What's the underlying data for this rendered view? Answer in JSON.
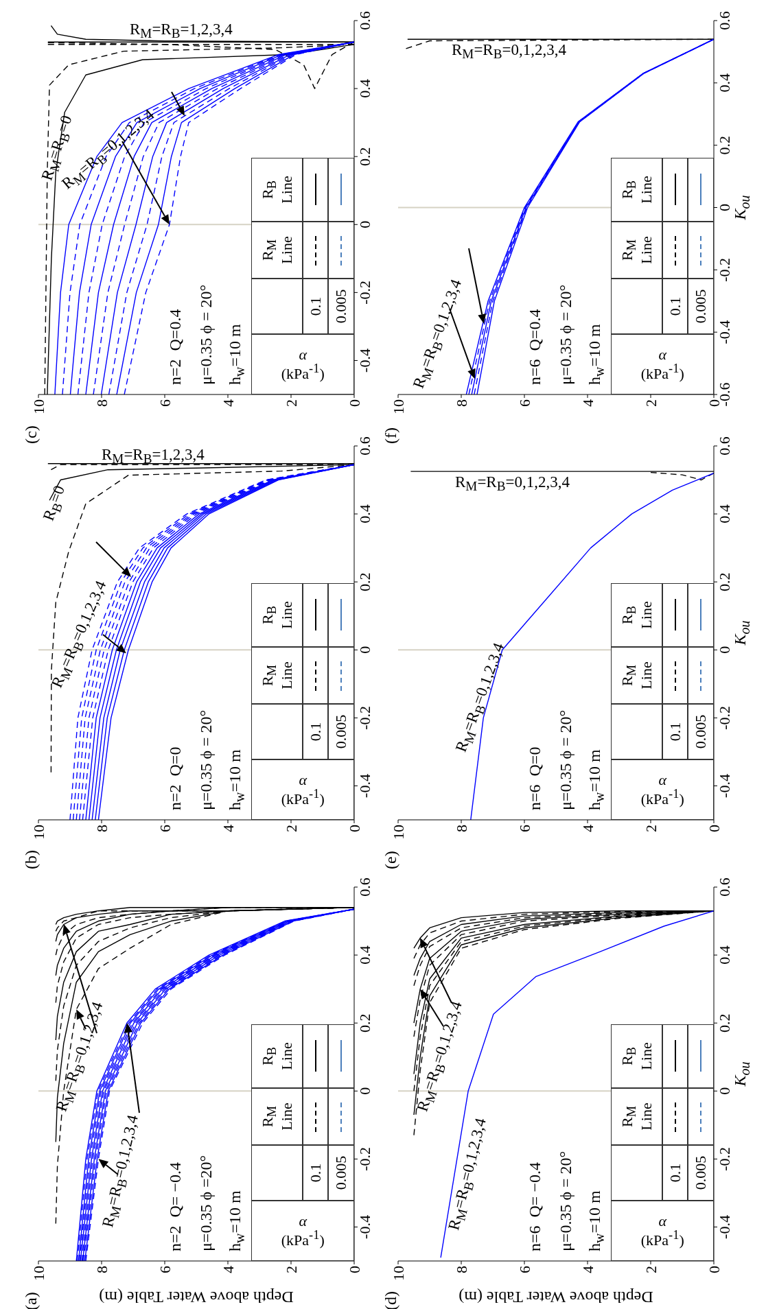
{
  "chart_data": [
    {
      "type": "line",
      "title": "(c)",
      "ylabel": null,
      "xlim": [
        10,
        0
      ],
      "xticks": [
        10,
        8,
        6,
        4,
        2,
        0
      ],
      "ylim": [
        -0.5,
        0.6
      ],
      "yticks": [
        -0.4,
        -0.2,
        0,
        0.2,
        0.4,
        0.6
      ],
      "ref_lines": [
        {
          "axis": "y",
          "value": 0,
          "color": "#d6d2c4"
        }
      ],
      "annotations": [
        "n=2  Q=0.4",
        "μ=0.35 ϕ = 20°",
        "h$_{w}$=10 m",
        "α (kPa$^{-1}$)",
        "R$_{M}$ Line",
        "R$_{B}$ Line",
        "0.1",
        "0.005",
        "R$_{M}$=R$_{B}$=1,2,3,4",
        "R$_{M}$=R$_{B}$=0",
        {
          "text": "R$_{M}$=R$_{B}$=0,1,2,3,4",
          "x": 5.85,
          "y": 0
        }
      ],
      "series": [
        {
          "color": "#000000",
          "line_style": "solid",
          "values": [
            0.53,
            0.515,
            0.5,
            0.485,
            0.44,
            0.33,
            0.155,
            -0.1,
            -0.5
          ],
          "x": [
            0,
            1,
            2.1,
            6.7,
            8.5,
            9.17,
            9.45,
            9.59,
            9.72
          ]
        },
        {
          "color": "#000000",
          "line_style": "dashed",
          "values": [
            0.53,
            0.52,
            0.51,
            0.47,
            0.41,
            0.155,
            -0.5
          ],
          "x": [
            0,
            2.3,
            7.3,
            9.04,
            9.65,
            9.72,
            9.8
          ]
        },
        {
          "color": "#000000",
          "line_style": "solid",
          "values": [
            0.537,
            0.537
          ],
          "x": [
            0,
            9.7
          ]
        },
        {
          "color": "#000000",
          "line_style": "solid",
          "values": [
            0.537,
            0.54,
            0.545,
            0.56,
            0.585
          ],
          "x": [
            0,
            6,
            8.5,
            9.4,
            9.6
          ]
        },
        {
          "color": "#000000",
          "line_style": "dashed",
          "values": [
            0.537,
            0.5,
            0.4,
            0.47,
            0.515,
            0.53,
            0.535
          ],
          "x": [
            0,
            0.7,
            1.25,
            1.6,
            2.5,
            6,
            9.7
          ]
        },
        {
          "color": "#000000",
          "line_style": "dashed",
          "values": [
            0.53,
            0.53
          ],
          "x": [
            0,
            9.7
          ]
        },
        {
          "color": "#0000ff",
          "line_style": "solid",
          "x": [
            9.48,
            9.3,
            9.04,
            8.15,
            7.35,
            5.24,
            2.4,
            0
          ],
          "values": [
            -0.5,
            -0.2,
            0,
            0.2,
            0.3,
            0.4,
            0.5,
            0.537
          ]
        },
        {
          "color": "#0000ff",
          "line_style": "dashed",
          "x": [
            9.24,
            9.0,
            8.69,
            7.86,
            7.12,
            5.06,
            2.34,
            0
          ],
          "values": [
            -0.5,
            -0.2,
            0,
            0.2,
            0.3,
            0.4,
            0.5,
            0.537
          ]
        },
        {
          "color": "#0000ff",
          "line_style": "solid",
          "x": [
            8.99,
            8.7,
            8.33,
            7.56,
            6.88,
            4.88,
            2.28,
            0
          ],
          "values": [
            -0.5,
            -0.2,
            0,
            0.2,
            0.3,
            0.4,
            0.5,
            0.537
          ]
        },
        {
          "color": "#0000ff",
          "line_style": "dashed",
          "x": [
            8.75,
            8.4,
            7.98,
            7.27,
            6.65,
            4.69,
            2.22,
            0
          ],
          "values": [
            -0.5,
            -0.2,
            0,
            0.2,
            0.3,
            0.4,
            0.5,
            0.537
          ]
        },
        {
          "color": "#0000ff",
          "line_style": "solid",
          "x": [
            8.5,
            8.1,
            7.62,
            6.97,
            6.41,
            4.51,
            2.16,
            0
          ],
          "values": [
            -0.5,
            -0.2,
            0,
            0.2,
            0.3,
            0.4,
            0.5,
            0.537
          ]
        },
        {
          "color": "#0000ff",
          "line_style": "dashed",
          "x": [
            8.26,
            7.8,
            7.27,
            6.68,
            6.18,
            4.33,
            2.09,
            0
          ],
          "values": [
            -0.5,
            -0.2,
            0,
            0.2,
            0.3,
            0.4,
            0.5,
            0.537
          ]
        },
        {
          "color": "#0000ff",
          "line_style": "solid",
          "x": [
            8.01,
            7.5,
            6.91,
            6.38,
            5.94,
            4.15,
            2.03,
            0
          ],
          "values": [
            -0.5,
            -0.2,
            0,
            0.2,
            0.3,
            0.4,
            0.5,
            0.537
          ]
        },
        {
          "color": "#0000ff",
          "line_style": "dashed",
          "x": [
            7.77,
            7.2,
            6.56,
            6.09,
            5.71,
            3.96,
            1.97,
            0
          ],
          "values": [
            -0.5,
            -0.2,
            0,
            0.2,
            0.3,
            0.4,
            0.5,
            0.537
          ]
        },
        {
          "color": "#0000ff",
          "line_style": "solid",
          "x": [
            7.52,
            6.9,
            6.2,
            5.79,
            5.47,
            3.78,
            1.91,
            0
          ],
          "values": [
            -0.5,
            -0.2,
            0,
            0.2,
            0.3,
            0.4,
            0.5,
            0.537
          ]
        },
        {
          "color": "#0000ff",
          "line_style": "dashed",
          "x": [
            7.28,
            6.6,
            5.85,
            5.5,
            5.24,
            3.6,
            1.85,
            0
          ],
          "values": [
            -0.5,
            -0.2,
            0,
            0.2,
            0.3,
            0.4,
            0.5,
            0.537
          ]
        }
      ]
    },
    {
      "type": "line",
      "title": "(f)",
      "ylabel": "K$_{ou}$",
      "xlim": [
        10,
        0
      ],
      "xticks": [
        10,
        8,
        6,
        4,
        2,
        0
      ],
      "ylim": [
        -0.6,
        0.6
      ],
      "yticks": [
        -0.6,
        -0.4,
        -0.2,
        0,
        0.2,
        0.4,
        0.6
      ],
      "ref_lines": [
        {
          "axis": "y",
          "value": 0,
          "color": "#d6d2c4"
        }
      ],
      "annotations": [
        "n=6  Q=0.4",
        "μ=0.35 ϕ = 20°",
        "h$_{w}$=10 m",
        "α (kPa$^{-1}$)",
        "R$_{M}$ Line",
        "R$_{B}$ Line",
        "0.1",
        "0.005",
        "R$_{M}$=R$_{B}$=0,1,2,3,4",
        {
          "text": "R$_{M}$=R$_{B}$=0,1,2,3,4",
          "x": 7.57,
          "y": -0.55
        }
      ],
      "series": [
        {
          "color": "#000000",
          "line_style": "solid",
          "values": [
            0.54,
            0.54
          ],
          "x": [
            0,
            9.7
          ]
        },
        {
          "color": "#000000",
          "line_style": "dashed",
          "values": [
            0.54,
            0.535,
            0.51
          ],
          "x": [
            0,
            9.0,
            9.75
          ]
        },
        {
          "color": "#0000ff",
          "line_style": "solid",
          "x": [
            7.84,
            7.15,
            6.0,
            4.3,
            2.25,
            0
          ],
          "values": [
            -0.6,
            -0.3,
            0,
            0.275,
            0.43,
            0.54
          ]
        },
        {
          "color": "#0000ff",
          "line_style": "dashed",
          "x": [
            7.76,
            7.1,
            5.98,
            4.29,
            2.24,
            0
          ],
          "values": [
            -0.6,
            -0.3,
            0,
            0.275,
            0.43,
            0.54
          ]
        },
        {
          "color": "#0000ff",
          "line_style": "solid",
          "x": [
            7.67,
            7.05,
            5.95,
            4.27,
            2.24,
            0
          ],
          "values": [
            -0.6,
            -0.3,
            0,
            0.275,
            0.43,
            0.54
          ]
        },
        {
          "color": "#0000ff",
          "line_style": "dashed",
          "x": [
            7.59,
            7.0,
            5.93,
            4.26,
            2.23,
            0
          ],
          "values": [
            -0.6,
            -0.3,
            0,
            0.275,
            0.43,
            0.54
          ]
        },
        {
          "color": "#0000ff",
          "line_style": "solid",
          "x": [
            7.5,
            6.95,
            5.9,
            4.25,
            2.22,
            0
          ],
          "values": [
            -0.6,
            -0.3,
            0,
            0.275,
            0.43,
            0.54
          ]
        }
      ]
    },
    {
      "type": "line",
      "title": "(b)",
      "xlim": [
        10,
        0
      ],
      "xticks": [
        10,
        8,
        6,
        4,
        2,
        0
      ],
      "ylim": [
        -0.5,
        0.6
      ],
      "yticks": [
        -0.4,
        -0.2,
        0,
        0.2,
        0.4,
        0.6
      ],
      "ref_lines": [
        {
          "axis": "y",
          "value": 0,
          "color": "#d6d2c4"
        }
      ],
      "annotations": [
        "n=2  Q=0",
        "μ=0.35 ϕ = 20°",
        "h$_{w}$=10 m",
        "α (kPa$^{-1}$)",
        "R$_{M}$ Line",
        "R$_{B}$ Line",
        "0.1",
        "0.005",
        "R$_{M}$=R$_{B}$=1,2,3,4",
        "R$_{B}$=0",
        {
          "text": "R$_{M}$=R$_{B}$=0,1,2,3,4",
          "x": 7.22,
          "y": -0.01
        }
      ],
      "series": [
        {
          "color": "#000000",
          "line_style": "solid",
          "values": [
            0.545,
            0.535,
            0.53,
            0.5,
            0.44
          ],
          "x": [
            0,
            5,
            7.8,
            9.3,
            9.65
          ]
        },
        {
          "color": "#000000",
          "line_style": "solid",
          "values": [
            0.548,
            0.548
          ],
          "x": [
            0,
            9.7
          ]
        },
        {
          "color": "#000000",
          "line_style": "dashed",
          "values": [
            0.545,
            0.526,
            0.514,
            0.43,
            0.29,
            0.14,
            -0.06,
            -0.36
          ],
          "x": [
            0,
            2.3,
            7.15,
            8.5,
            9.04,
            9.45,
            9.59,
            9.6
          ]
        },
        {
          "color": "#000000",
          "line_style": "dashed",
          "values": [
            0.545,
            0.545,
            0.53
          ],
          "x": [
            0,
            9.3,
            9.6
          ]
        },
        {
          "color": "#0000ff",
          "line_style": "dashed",
          "x": [
            9.0,
            8.75,
            8.3,
            7.5,
            6.8,
            5.3,
            2.8,
            0
          ],
          "values": [
            -0.5,
            -0.2,
            0,
            0.2,
            0.3,
            0.4,
            0.5,
            0.545
          ]
        },
        {
          "color": "#0000ff",
          "line_style": "dashed",
          "x": [
            8.9,
            8.63,
            8.17,
            7.38,
            6.69,
            5.22,
            2.76,
            0
          ],
          "values": [
            -0.5,
            -0.2,
            0,
            0.2,
            0.3,
            0.4,
            0.5,
            0.545
          ]
        },
        {
          "color": "#0000ff",
          "line_style": "dashed",
          "x": [
            8.8,
            8.52,
            8.04,
            7.26,
            6.58,
            5.14,
            2.71,
            0
          ],
          "values": [
            -0.5,
            -0.2,
            0,
            0.2,
            0.3,
            0.4,
            0.5,
            0.545
          ]
        },
        {
          "color": "#0000ff",
          "line_style": "dashed",
          "x": [
            8.7,
            8.4,
            7.92,
            7.13,
            6.47,
            5.07,
            2.67,
            0
          ],
          "values": [
            -0.5,
            -0.2,
            0,
            0.2,
            0.3,
            0.4,
            0.5,
            0.545
          ]
        },
        {
          "color": "#0000ff",
          "line_style": "dashed",
          "x": [
            8.6,
            8.28,
            7.79,
            7.01,
            6.36,
            4.99,
            2.62,
            0
          ],
          "values": [
            -0.5,
            -0.2,
            0,
            0.2,
            0.3,
            0.4,
            0.5,
            0.545
          ]
        },
        {
          "color": "#0000ff",
          "line_style": "solid",
          "x": [
            8.5,
            8.17,
            7.66,
            6.89,
            6.24,
            4.91,
            2.58,
            0
          ],
          "values": [
            -0.5,
            -0.2,
            0,
            0.2,
            0.3,
            0.4,
            0.5,
            0.545
          ]
        },
        {
          "color": "#0000ff",
          "line_style": "solid",
          "x": [
            8.4,
            8.05,
            7.53,
            6.77,
            6.13,
            4.83,
            2.53,
            0
          ],
          "values": [
            -0.5,
            -0.2,
            0,
            0.2,
            0.3,
            0.4,
            0.5,
            0.545
          ]
        },
        {
          "color": "#0000ff",
          "line_style": "solid",
          "x": [
            8.3,
            7.93,
            7.41,
            6.64,
            6.02,
            4.76,
            2.49,
            0
          ],
          "values": [
            -0.5,
            -0.2,
            0,
            0.2,
            0.3,
            0.4,
            0.5,
            0.545
          ]
        },
        {
          "color": "#0000ff",
          "line_style": "solid",
          "x": [
            8.2,
            7.82,
            7.28,
            6.52,
            5.91,
            4.68,
            2.44,
            0
          ],
          "values": [
            -0.5,
            -0.2,
            0,
            0.2,
            0.3,
            0.4,
            0.5,
            0.545
          ]
        },
        {
          "color": "#0000ff",
          "line_style": "solid",
          "x": [
            8.1,
            7.7,
            7.15,
            6.4,
            5.8,
            4.6,
            2.4,
            0
          ],
          "values": [
            -0.5,
            -0.2,
            0,
            0.2,
            0.3,
            0.4,
            0.5,
            0.545
          ]
        }
      ]
    },
    {
      "type": "line",
      "title": "(e)",
      "ylabel": "K$_{ou}$",
      "xlim": [
        10,
        0
      ],
      "xticks": [
        10,
        8,
        6,
        4,
        2,
        0
      ],
      "ylim": [
        -0.5,
        0.6
      ],
      "yticks": [
        -0.4,
        -0.2,
        0,
        0.2,
        0.4,
        0.6
      ],
      "ref_lines": [
        {
          "axis": "y",
          "value": 0,
          "color": "#d6d2c4"
        }
      ],
      "annotations": [
        "n=6  Q=0",
        "μ=0.35 ϕ = 20°",
        "h$_{w}$=10 m",
        "α (kPa$^{-1}$)",
        "R$_{M}$ Line",
        "R$_{B}$ Line",
        "0.1",
        "0.005",
        "R$_{M}$=R$_{B}$=0,1,2,3,4",
        "R$_{M}$=R$_{B}$=0,1,2,3,4"
      ],
      "series": [
        {
          "color": "#000000",
          "line_style": "solid",
          "values": [
            0.525,
            0.525
          ],
          "x": [
            0,
            9.6
          ]
        },
        {
          "color": "#000000",
          "line_style": "dashed",
          "values": [
            0.52,
            0.5,
            0.515,
            0.522
          ],
          "x": [
            0,
            0.4,
            1.0,
            2.0
          ]
        },
        {
          "color": "#0000ff",
          "line_style": "solid",
          "values": [
            -0.5,
            -0.2,
            0,
            0.15,
            0.3,
            0.4,
            0.47,
            0.52
          ],
          "x": [
            7.7,
            7.3,
            6.7,
            5.3,
            3.9,
            2.6,
            1.31,
            0
          ]
        }
      ]
    },
    {
      "type": "line",
      "title": "(a)",
      "xlabel": "Depth above Water Table (m)",
      "xlim": [
        10,
        0
      ],
      "xticks": [
        10,
        8,
        6,
        4,
        2,
        0
      ],
      "ylim": [
        -0.5,
        0.6
      ],
      "yticks": [
        -0.4,
        -0.2,
        0,
        0.2,
        0.4,
        0.6
      ],
      "ref_lines": [
        {
          "axis": "y",
          "value": 0,
          "color": "#d6d2c4"
        }
      ],
      "annotations": [
        "n=2  Q= −0.4",
        "μ=0.35 ϕ =20°",
        "h$_{w}$=10 m",
        "α (kPa$^{-1}$)",
        "R$_{M}$ Line",
        "R$_{B}$ Line",
        "0.1",
        "0.005",
        {
          "text": "R$_{M}$=R$_{B}$=0,1,2,3,4",
          "x": 8.8,
          "y": 0.24
        },
        {
          "text": "R$_{M}$=R$_{B}$=0,1,2,3,4",
          "x": 8.1,
          "y": -0.2
        }
      ],
      "series": [
        {
          "color": "#000000",
          "line_style": "solid",
          "values": [
            0.54,
            0.54,
            0.54,
            0.54,
            0.53,
            0.52,
            0.51,
            0.5,
            0.49
          ],
          "x": [
            0,
            4,
            5.8,
            7.1,
            8.1,
            8.8,
            9.2,
            9.4,
            9.45
          ]
        },
        {
          "color": "#000000",
          "line_style": "dashed",
          "values": [
            0.54,
            0.54,
            0.53,
            0.53,
            0.53,
            0.51,
            0.5,
            0.48,
            0.47
          ],
          "x": [
            0,
            4,
            5.8,
            7.1,
            8.1,
            8.8,
            9.2,
            9.4,
            9.45
          ]
        },
        {
          "color": "#000000",
          "line_style": "solid",
          "values": [
            0.54,
            0.54,
            0.53,
            0.53,
            0.52,
            0.51,
            0.49,
            0.46,
            0.44
          ],
          "x": [
            0,
            4,
            5.8,
            7.1,
            8.1,
            8.8,
            9.2,
            9.4,
            9.45
          ]
        },
        {
          "color": "#000000",
          "line_style": "dashed",
          "values": [
            0.54,
            0.53,
            0.53,
            0.52,
            0.51,
            0.49,
            0.46,
            0.42,
            0.4
          ],
          "x": [
            0,
            4,
            5.8,
            7.1,
            8.1,
            8.8,
            9.2,
            9.4,
            9.45
          ]
        },
        {
          "color": "#000000",
          "line_style": "solid",
          "values": [
            0.54,
            0.53,
            0.53,
            0.52,
            0.5,
            0.47,
            0.42,
            0.37,
            0.34
          ],
          "x": [
            0,
            4,
            5.8,
            7.1,
            8.1,
            8.8,
            9.2,
            9.4,
            9.45
          ]
        },
        {
          "color": "#000000",
          "line_style": "dashed",
          "values": [
            0.54,
            0.53,
            0.52,
            0.51,
            0.49,
            0.45,
            0.38,
            0.31,
            0.26
          ],
          "x": [
            0,
            4,
            5.8,
            7.1,
            8.1,
            8.8,
            9.2,
            9.4,
            9.45
          ]
        },
        {
          "color": "#000000",
          "line_style": "solid",
          "values": [
            0.54,
            0.53,
            0.52,
            0.49,
            0.47,
            0.41,
            0.32,
            0.22,
            0.15
          ],
          "x": [
            0,
            4,
            5.8,
            7.1,
            8.1,
            8.8,
            9.2,
            9.4,
            9.45
          ]
        },
        {
          "color": "#000000",
          "line_style": "dashed",
          "values": [
            0.54,
            0.53,
            0.51,
            0.48,
            0.44,
            0.37,
            0.25,
            0.12,
            0.03
          ],
          "x": [
            0,
            4,
            5.8,
            7.1,
            8.1,
            8.8,
            9.2,
            9.4,
            9.45
          ]
        },
        {
          "color": "#000000",
          "line_style": "solid",
          "values": [
            0.54,
            0.53,
            0.5,
            0.46,
            0.41,
            0.32,
            0.14,
            -0.02,
            -0.15
          ],
          "x": [
            0,
            4,
            5.8,
            7.1,
            8.1,
            8.8,
            9.2,
            9.4,
            9.45
          ]
        },
        {
          "color": "#000000",
          "line_style": "dashed",
          "values": [
            0.54,
            0.53,
            0.49,
            0.42,
            0.36,
            0.24,
            0,
            -0.22,
            -0.39
          ],
          "x": [
            0,
            4,
            5.8,
            7.1,
            8.1,
            8.8,
            9.2,
            9.4,
            9.45
          ]
        },
        {
          "color": "#0000ff",
          "line_style": "solid",
          "x": [
            8.8,
            8.5,
            8.15,
            7.2,
            6.3,
            4.6,
            2.2,
            0
          ],
          "values": [
            -0.5,
            -0.2,
            0,
            0.2,
            0.3,
            0.4,
            0.5,
            0.535
          ]
        },
        {
          "color": "#0000ff",
          "line_style": "dashed",
          "x": [
            8.77,
            8.46,
            8.11,
            7.14,
            6.24,
            4.54,
            2.17,
            0
          ],
          "values": [
            -0.5,
            -0.2,
            0,
            0.2,
            0.3,
            0.4,
            0.5,
            0.535
          ]
        },
        {
          "color": "#0000ff",
          "line_style": "solid",
          "x": [
            8.73,
            8.41,
            8.06,
            7.09,
            6.19,
            4.49,
            2.13,
            0
          ],
          "values": [
            -0.5,
            -0.2,
            0,
            0.2,
            0.3,
            0.4,
            0.5,
            0.535
          ]
        },
        {
          "color": "#0000ff",
          "line_style": "dashed",
          "x": [
            8.7,
            8.37,
            8.02,
            7.03,
            6.13,
            4.43,
            2.1,
            0
          ],
          "values": [
            -0.5,
            -0.2,
            0,
            0.2,
            0.3,
            0.4,
            0.5,
            0.535
          ]
        },
        {
          "color": "#0000ff",
          "line_style": "solid",
          "x": [
            8.67,
            8.32,
            7.97,
            6.98,
            6.08,
            4.38,
            2.07,
            0
          ],
          "values": [
            -0.5,
            -0.2,
            0,
            0.2,
            0.3,
            0.4,
            0.5,
            0.535
          ]
        },
        {
          "color": "#0000ff",
          "line_style": "dashed",
          "x": [
            8.63,
            8.28,
            7.93,
            6.92,
            6.02,
            4.32,
            2.03,
            0
          ],
          "values": [
            -0.5,
            -0.2,
            0,
            0.2,
            0.3,
            0.4,
            0.5,
            0.535
          ]
        },
        {
          "color": "#0000ff",
          "line_style": "solid",
          "x": [
            8.6,
            8.23,
            7.88,
            6.87,
            5.97,
            4.27,
            2.0,
            0
          ],
          "values": [
            -0.5,
            -0.2,
            0,
            0.2,
            0.3,
            0.4,
            0.5,
            0.535
          ]
        },
        {
          "color": "#0000ff",
          "line_style": "dashed",
          "x": [
            8.57,
            8.19,
            7.84,
            6.81,
            5.91,
            4.21,
            1.97,
            0
          ],
          "values": [
            -0.5,
            -0.2,
            0,
            0.2,
            0.3,
            0.4,
            0.5,
            0.535
          ]
        },
        {
          "color": "#0000ff",
          "line_style": "solid",
          "x": [
            8.53,
            8.14,
            7.79,
            6.76,
            5.86,
            4.16,
            1.93,
            0
          ],
          "values": [
            -0.5,
            -0.2,
            0,
            0.2,
            0.3,
            0.4,
            0.5,
            0.535
          ]
        },
        {
          "color": "#0000ff",
          "line_style": "dashed",
          "x": [
            8.5,
            8.1,
            7.75,
            6.7,
            5.8,
            4.1,
            1.9,
            0
          ],
          "values": [
            -0.5,
            -0.2,
            0,
            0.2,
            0.3,
            0.4,
            0.5,
            0.535
          ]
        }
      ]
    },
    {
      "type": "line",
      "title": "(d)",
      "xlabel": "Depth above Water Table (m)",
      "ylabel": "K$_{ou}$",
      "xlim": [
        10,
        0
      ],
      "xticks": [
        10,
        8,
        6,
        4,
        2,
        0
      ],
      "ylim": [
        -0.5,
        0.6
      ],
      "yticks": [
        -0.4,
        -0.2,
        0,
        0.2,
        0.4,
        0.6
      ],
      "ref_lines": [
        {
          "axis": "y",
          "value": 0,
          "color": "#d6d2c4"
        }
      ],
      "annotations": [
        "n=6  Q= −0.4",
        "μ=0.35 ϕ = 20°",
        "h$_{w}$=10 m",
        "α (kPa$^{-1}$)",
        "R$_{M}$ Line",
        "R$_{B}$ Line",
        "0.1",
        "0.005",
        {
          "text": "R$_{M}$=R$_{B}$=0,1,2,3,4",
          "x": 9.3,
          "y": 0.3
        },
        "R$_{M}$=R$_{B}$=0,1,2,3,4"
      ],
      "series": [
        {
          "color": "#000000",
          "line_style": "solid",
          "values": [
            0.53,
            0.53,
            0.525,
            0.51,
            0.48,
            0.45,
            0.42
          ],
          "x": [
            0,
            3,
            6,
            8,
            9,
            9.3,
            9.5
          ]
        },
        {
          "color": "#000000",
          "line_style": "dashed",
          "values": [
            0.53,
            0.528,
            0.52,
            0.5,
            0.465,
            0.43,
            0.39
          ],
          "x": [
            0,
            3,
            6,
            8,
            9,
            9.3,
            9.5
          ]
        },
        {
          "color": "#000000",
          "line_style": "solid",
          "values": [
            0.53,
            0.525,
            0.515,
            0.49,
            0.44,
            0.39,
            0.34
          ],
          "x": [
            0,
            3,
            6,
            8,
            9,
            9.3,
            9.5
          ]
        },
        {
          "color": "#000000",
          "line_style": "dashed",
          "values": [
            0.53,
            0.523,
            0.51,
            0.48,
            0.425,
            0.37,
            0.31
          ],
          "x": [
            0,
            3,
            6,
            8,
            9,
            9.3,
            9.5
          ]
        },
        {
          "color": "#000000",
          "line_style": "solid",
          "values": [
            0.53,
            0.52,
            0.505,
            0.47,
            0.39,
            0.3,
            0.2
          ],
          "x": [
            0,
            3,
            6,
            8,
            9,
            9.3,
            9.5
          ]
        },
        {
          "color": "#000000",
          "line_style": "dashed",
          "values": [
            0.53,
            0.518,
            0.5,
            0.46,
            0.37,
            0.27,
            0.16
          ],
          "x": [
            0,
            3,
            6,
            8,
            9,
            9.3,
            9.5
          ]
        },
        {
          "color": "#000000",
          "line_style": "solid",
          "values": [
            0.53,
            0.515,
            0.49,
            0.45,
            0.33,
            0.2,
            0.05
          ],
          "x": [
            0,
            3,
            6,
            8,
            9,
            9.3,
            9.5
          ]
        },
        {
          "color": "#000000",
          "line_style": "dashed",
          "values": [
            0.53,
            0.513,
            0.485,
            0.44,
            0.31,
            0.16,
            0.0
          ],
          "x": [
            0,
            3,
            6,
            8,
            9,
            9.3,
            9.5
          ]
        },
        {
          "color": "#000000",
          "line_style": "solid",
          "values": [
            0.53,
            0.51,
            0.48,
            0.43,
            0.28,
            0.1,
            -0.07
          ],
          "x": [
            0,
            3,
            6,
            8,
            9,
            9.3,
            9.5
          ]
        },
        {
          "color": "#000000",
          "line_style": "dashed",
          "values": [
            0.53,
            0.508,
            0.475,
            0.42,
            0.26,
            0.06,
            -0.13
          ],
          "x": [
            0,
            3,
            6,
            8,
            9,
            9.3,
            9.5
          ]
        },
        {
          "color": "#0000ff",
          "line_style": "solid",
          "values": [
            -0.49,
            0,
            0.226,
            0.337,
            0.41,
            0.485,
            0.53
          ],
          "x": [
            8.65,
            7.78,
            6.98,
            5.63,
            3.6,
            1.58,
            0
          ]
        }
      ]
    }
  ]
}
